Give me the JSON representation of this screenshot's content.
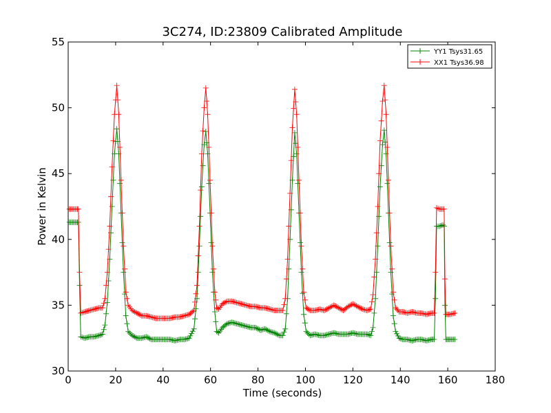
{
  "chart_data": {
    "type": "line",
    "title": "3C274, ID:23809 Calibrated Amplitude",
    "xlabel": "Time (seconds)",
    "ylabel": "Power in Kelvin",
    "xlim": [
      0,
      180
    ],
    "ylim": [
      30,
      55
    ],
    "xticks": [
      "0",
      "20",
      "40",
      "60",
      "80",
      "100",
      "120",
      "140",
      "160",
      "180"
    ],
    "yticks": [
      "30",
      "35",
      "40",
      "45",
      "50",
      "55"
    ],
    "grid": false,
    "legend_position": "top-right",
    "marker": "+",
    "series": [
      {
        "name": "YY1 Tsys31.65",
        "color": "#008000",
        "points": [
          [
            0.5,
            41.3
          ],
          [
            2,
            41.3
          ],
          [
            3.5,
            41.3
          ],
          [
            4.3,
            41.3
          ],
          [
            4.8,
            36.5
          ],
          [
            5.3,
            32.6
          ],
          [
            7,
            32.5
          ],
          [
            9,
            32.6
          ],
          [
            11,
            32.6
          ],
          [
            13,
            32.7
          ],
          [
            14.5,
            32.8
          ],
          [
            15.5,
            33.5
          ],
          [
            16.5,
            35.2
          ],
          [
            17.5,
            38.5
          ],
          [
            18.5,
            42.5
          ],
          [
            19.5,
            46.5
          ],
          [
            20.5,
            48.4
          ],
          [
            21.3,
            46.5
          ],
          [
            22.3,
            42.0
          ],
          [
            23.3,
            37.5
          ],
          [
            24.3,
            34.2
          ],
          [
            25.3,
            33.0
          ],
          [
            27,
            32.7
          ],
          [
            29,
            32.5
          ],
          [
            31,
            32.5
          ],
          [
            33,
            32.6
          ],
          [
            35,
            32.4
          ],
          [
            37,
            32.4
          ],
          [
            39,
            32.4
          ],
          [
            41,
            32.4
          ],
          [
            43,
            32.4
          ],
          [
            45,
            32.3
          ],
          [
            47,
            32.4
          ],
          [
            49,
            32.4
          ],
          [
            51,
            32.5
          ],
          [
            53,
            33.2
          ],
          [
            54.3,
            35.5
          ],
          [
            55.3,
            39.5
          ],
          [
            56.3,
            44.0
          ],
          [
            57.3,
            47.2
          ],
          [
            58,
            48.2
          ],
          [
            58.8,
            46.5
          ],
          [
            59.8,
            42.0
          ],
          [
            60.8,
            37.5
          ],
          [
            61.8,
            34.5
          ],
          [
            62.6,
            33.0
          ],
          [
            63.5,
            32.9
          ],
          [
            65,
            33.3
          ],
          [
            67,
            33.6
          ],
          [
            69,
            33.7
          ],
          [
            71,
            33.6
          ],
          [
            73,
            33.5
          ],
          [
            75,
            33.4
          ],
          [
            77,
            33.3
          ],
          [
            79,
            33.3
          ],
          [
            81,
            33.1
          ],
          [
            83,
            33.2
          ],
          [
            85,
            33.0
          ],
          [
            87,
            32.9
          ],
          [
            89,
            32.7
          ],
          [
            90.5,
            32.7
          ],
          [
            91.5,
            33.2
          ],
          [
            92.5,
            35.5
          ],
          [
            93.5,
            40.0
          ],
          [
            94.5,
            44.5
          ],
          [
            95.5,
            48.1
          ],
          [
            96.3,
            46.5
          ],
          [
            97.3,
            42.0
          ],
          [
            98.3,
            37.5
          ],
          [
            99.3,
            34.3
          ],
          [
            100.3,
            33.0
          ],
          [
            102,
            32.7
          ],
          [
            104,
            32.8
          ],
          [
            106,
            32.7
          ],
          [
            108,
            32.7
          ],
          [
            110,
            32.8
          ],
          [
            112,
            32.9
          ],
          [
            114,
            32.8
          ],
          [
            116,
            32.8
          ],
          [
            118,
            32.8
          ],
          [
            120,
            32.9
          ],
          [
            122,
            32.8
          ],
          [
            124,
            32.8
          ],
          [
            126,
            32.8
          ],
          [
            127.5,
            32.7
          ],
          [
            128.5,
            33.3
          ],
          [
            129.5,
            35.5
          ],
          [
            130.5,
            39.5
          ],
          [
            131.5,
            44.0
          ],
          [
            132.5,
            47.2
          ],
          [
            133.2,
            48.3
          ],
          [
            134,
            46.5
          ],
          [
            135,
            42.0
          ],
          [
            136,
            37.5
          ],
          [
            137,
            34.2
          ],
          [
            138,
            33.0
          ],
          [
            139.5,
            32.5
          ],
          [
            141,
            32.4
          ],
          [
            143,
            32.4
          ],
          [
            145,
            32.3
          ],
          [
            147,
            32.4
          ],
          [
            149,
            32.4
          ],
          [
            151,
            32.3
          ],
          [
            153,
            32.4
          ],
          [
            154.3,
            32.4
          ],
          [
            154.8,
            35.5
          ],
          [
            155.3,
            41.0
          ],
          [
            156.5,
            41.0
          ],
          [
            158,
            41.1
          ],
          [
            158.5,
            41.0
          ],
          [
            158.8,
            35.0
          ],
          [
            159.2,
            32.4
          ],
          [
            161,
            32.4
          ],
          [
            163,
            32.4
          ]
        ]
      },
      {
        "name": "XX1 Tsys36.98",
        "color": "#ff0000",
        "points": [
          [
            0.5,
            42.3
          ],
          [
            2,
            42.3
          ],
          [
            3.5,
            42.3
          ],
          [
            4.3,
            42.3
          ],
          [
            4.8,
            37.5
          ],
          [
            5.3,
            34.4
          ],
          [
            7,
            34.5
          ],
          [
            9,
            34.6
          ],
          [
            11,
            34.7
          ],
          [
            13,
            34.8
          ],
          [
            14.5,
            34.8
          ],
          [
            15.5,
            35.5
          ],
          [
            16.5,
            37.5
          ],
          [
            17.5,
            41.0
          ],
          [
            18.5,
            45.5
          ],
          [
            19.5,
            49.5
          ],
          [
            20.5,
            51.7
          ],
          [
            21.3,
            49.5
          ],
          [
            22.3,
            44.5
          ],
          [
            23.3,
            39.5
          ],
          [
            24.3,
            36.0
          ],
          [
            25.3,
            35.0
          ],
          [
            27,
            34.6
          ],
          [
            29,
            34.4
          ],
          [
            31,
            34.2
          ],
          [
            33,
            34.2
          ],
          [
            35,
            34.1
          ],
          [
            37,
            34.0
          ],
          [
            39,
            34.0
          ],
          [
            41,
            34.0
          ],
          [
            43,
            34.0
          ],
          [
            45,
            34.1
          ],
          [
            47,
            34.1
          ],
          [
            49,
            34.2
          ],
          [
            51,
            34.3
          ],
          [
            53,
            34.6
          ],
          [
            54.3,
            36.5
          ],
          [
            55.3,
            41.0
          ],
          [
            56.3,
            46.5
          ],
          [
            57.3,
            50.0
          ],
          [
            58,
            51.5
          ],
          [
            58.8,
            49.5
          ],
          [
            59.8,
            44.5
          ],
          [
            60.8,
            39.5
          ],
          [
            61.8,
            36.0
          ],
          [
            62.6,
            34.8
          ],
          [
            63.5,
            34.7
          ],
          [
            65,
            35.1
          ],
          [
            67,
            35.3
          ],
          [
            69,
            35.3
          ],
          [
            71,
            35.2
          ],
          [
            73,
            35.1
          ],
          [
            75,
            35.0
          ],
          [
            77,
            34.9
          ],
          [
            79,
            34.9
          ],
          [
            81,
            34.8
          ],
          [
            83,
            34.8
          ],
          [
            85,
            34.7
          ],
          [
            87,
            34.6
          ],
          [
            89,
            34.6
          ],
          [
            90.5,
            34.6
          ],
          [
            91.5,
            35.5
          ],
          [
            92.5,
            38.5
          ],
          [
            93.5,
            43.5
          ],
          [
            94.5,
            48.5
          ],
          [
            95.5,
            51.4
          ],
          [
            96.3,
            49.5
          ],
          [
            97.3,
            44.5
          ],
          [
            98.3,
            39.5
          ],
          [
            99.3,
            36.0
          ],
          [
            100.3,
            34.8
          ],
          [
            102,
            34.6
          ],
          [
            104,
            34.6
          ],
          [
            106,
            34.7
          ],
          [
            108,
            34.6
          ],
          [
            110,
            34.8
          ],
          [
            112,
            35.0
          ],
          [
            114,
            34.8
          ],
          [
            116,
            34.6
          ],
          [
            118,
            34.9
          ],
          [
            120,
            35.1
          ],
          [
            122,
            34.9
          ],
          [
            124,
            34.7
          ],
          [
            126,
            34.6
          ],
          [
            127.5,
            34.7
          ],
          [
            128.5,
            35.8
          ],
          [
            129.5,
            38.5
          ],
          [
            130.5,
            42.5
          ],
          [
            131.5,
            47.5
          ],
          [
            132.5,
            50.5
          ],
          [
            133.2,
            51.7
          ],
          [
            134,
            49.5
          ],
          [
            135,
            44.5
          ],
          [
            136,
            39.5
          ],
          [
            137,
            36.0
          ],
          [
            138,
            34.8
          ],
          [
            139.5,
            34.5
          ],
          [
            141,
            34.5
          ],
          [
            143,
            34.4
          ],
          [
            145,
            34.5
          ],
          [
            147,
            34.4
          ],
          [
            149,
            34.4
          ],
          [
            151,
            34.3
          ],
          [
            153,
            34.4
          ],
          [
            154.3,
            34.4
          ],
          [
            154.8,
            37.5
          ],
          [
            155.3,
            42.4
          ],
          [
            156.5,
            42.3
          ],
          [
            158,
            42.3
          ],
          [
            158.5,
            42.3
          ],
          [
            158.8,
            37.0
          ],
          [
            159.2,
            34.3
          ],
          [
            161,
            34.3
          ],
          [
            163,
            34.4
          ]
        ]
      }
    ]
  }
}
